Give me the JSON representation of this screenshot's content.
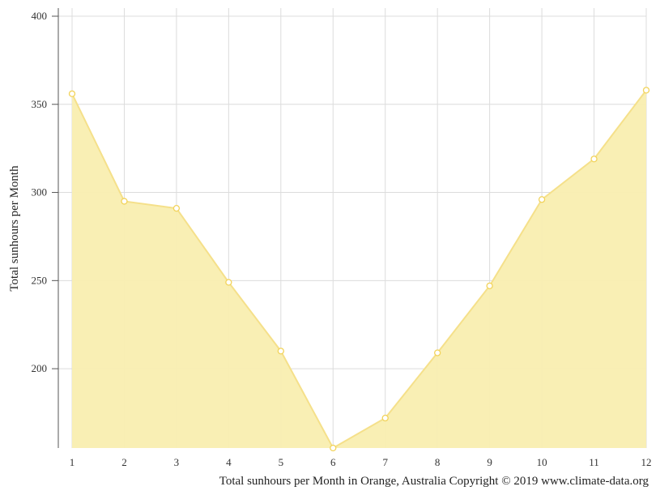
{
  "chart_data": {
    "type": "area",
    "x": [
      1,
      2,
      3,
      4,
      5,
      6,
      7,
      8,
      9,
      10,
      11,
      12
    ],
    "x_tick_labels": [
      "1",
      "2",
      "3",
      "4",
      "5",
      "6",
      "7",
      "8",
      "9",
      "10",
      "11",
      "12"
    ],
    "series": [
      {
        "values": [
          356,
          295,
          291,
          249,
          210,
          155,
          172,
          209,
          247,
          296,
          319,
          358
        ]
      }
    ],
    "ylabel": "Total sunhours per Month",
    "caption": "Total sunhours per Month in Orange, Australia Copyright © 2019 www.climate-data.org",
    "y_ticks": [
      200,
      250,
      300,
      350,
      400
    ],
    "y_tick_labels": [
      "200",
      "250",
      "300",
      "350",
      "400"
    ],
    "ylim": [
      155,
      400
    ],
    "grid": true,
    "fill_color": "#f9eeb0",
    "line_color": "#f5e08a",
    "marker_stroke": "#f2d35a"
  }
}
